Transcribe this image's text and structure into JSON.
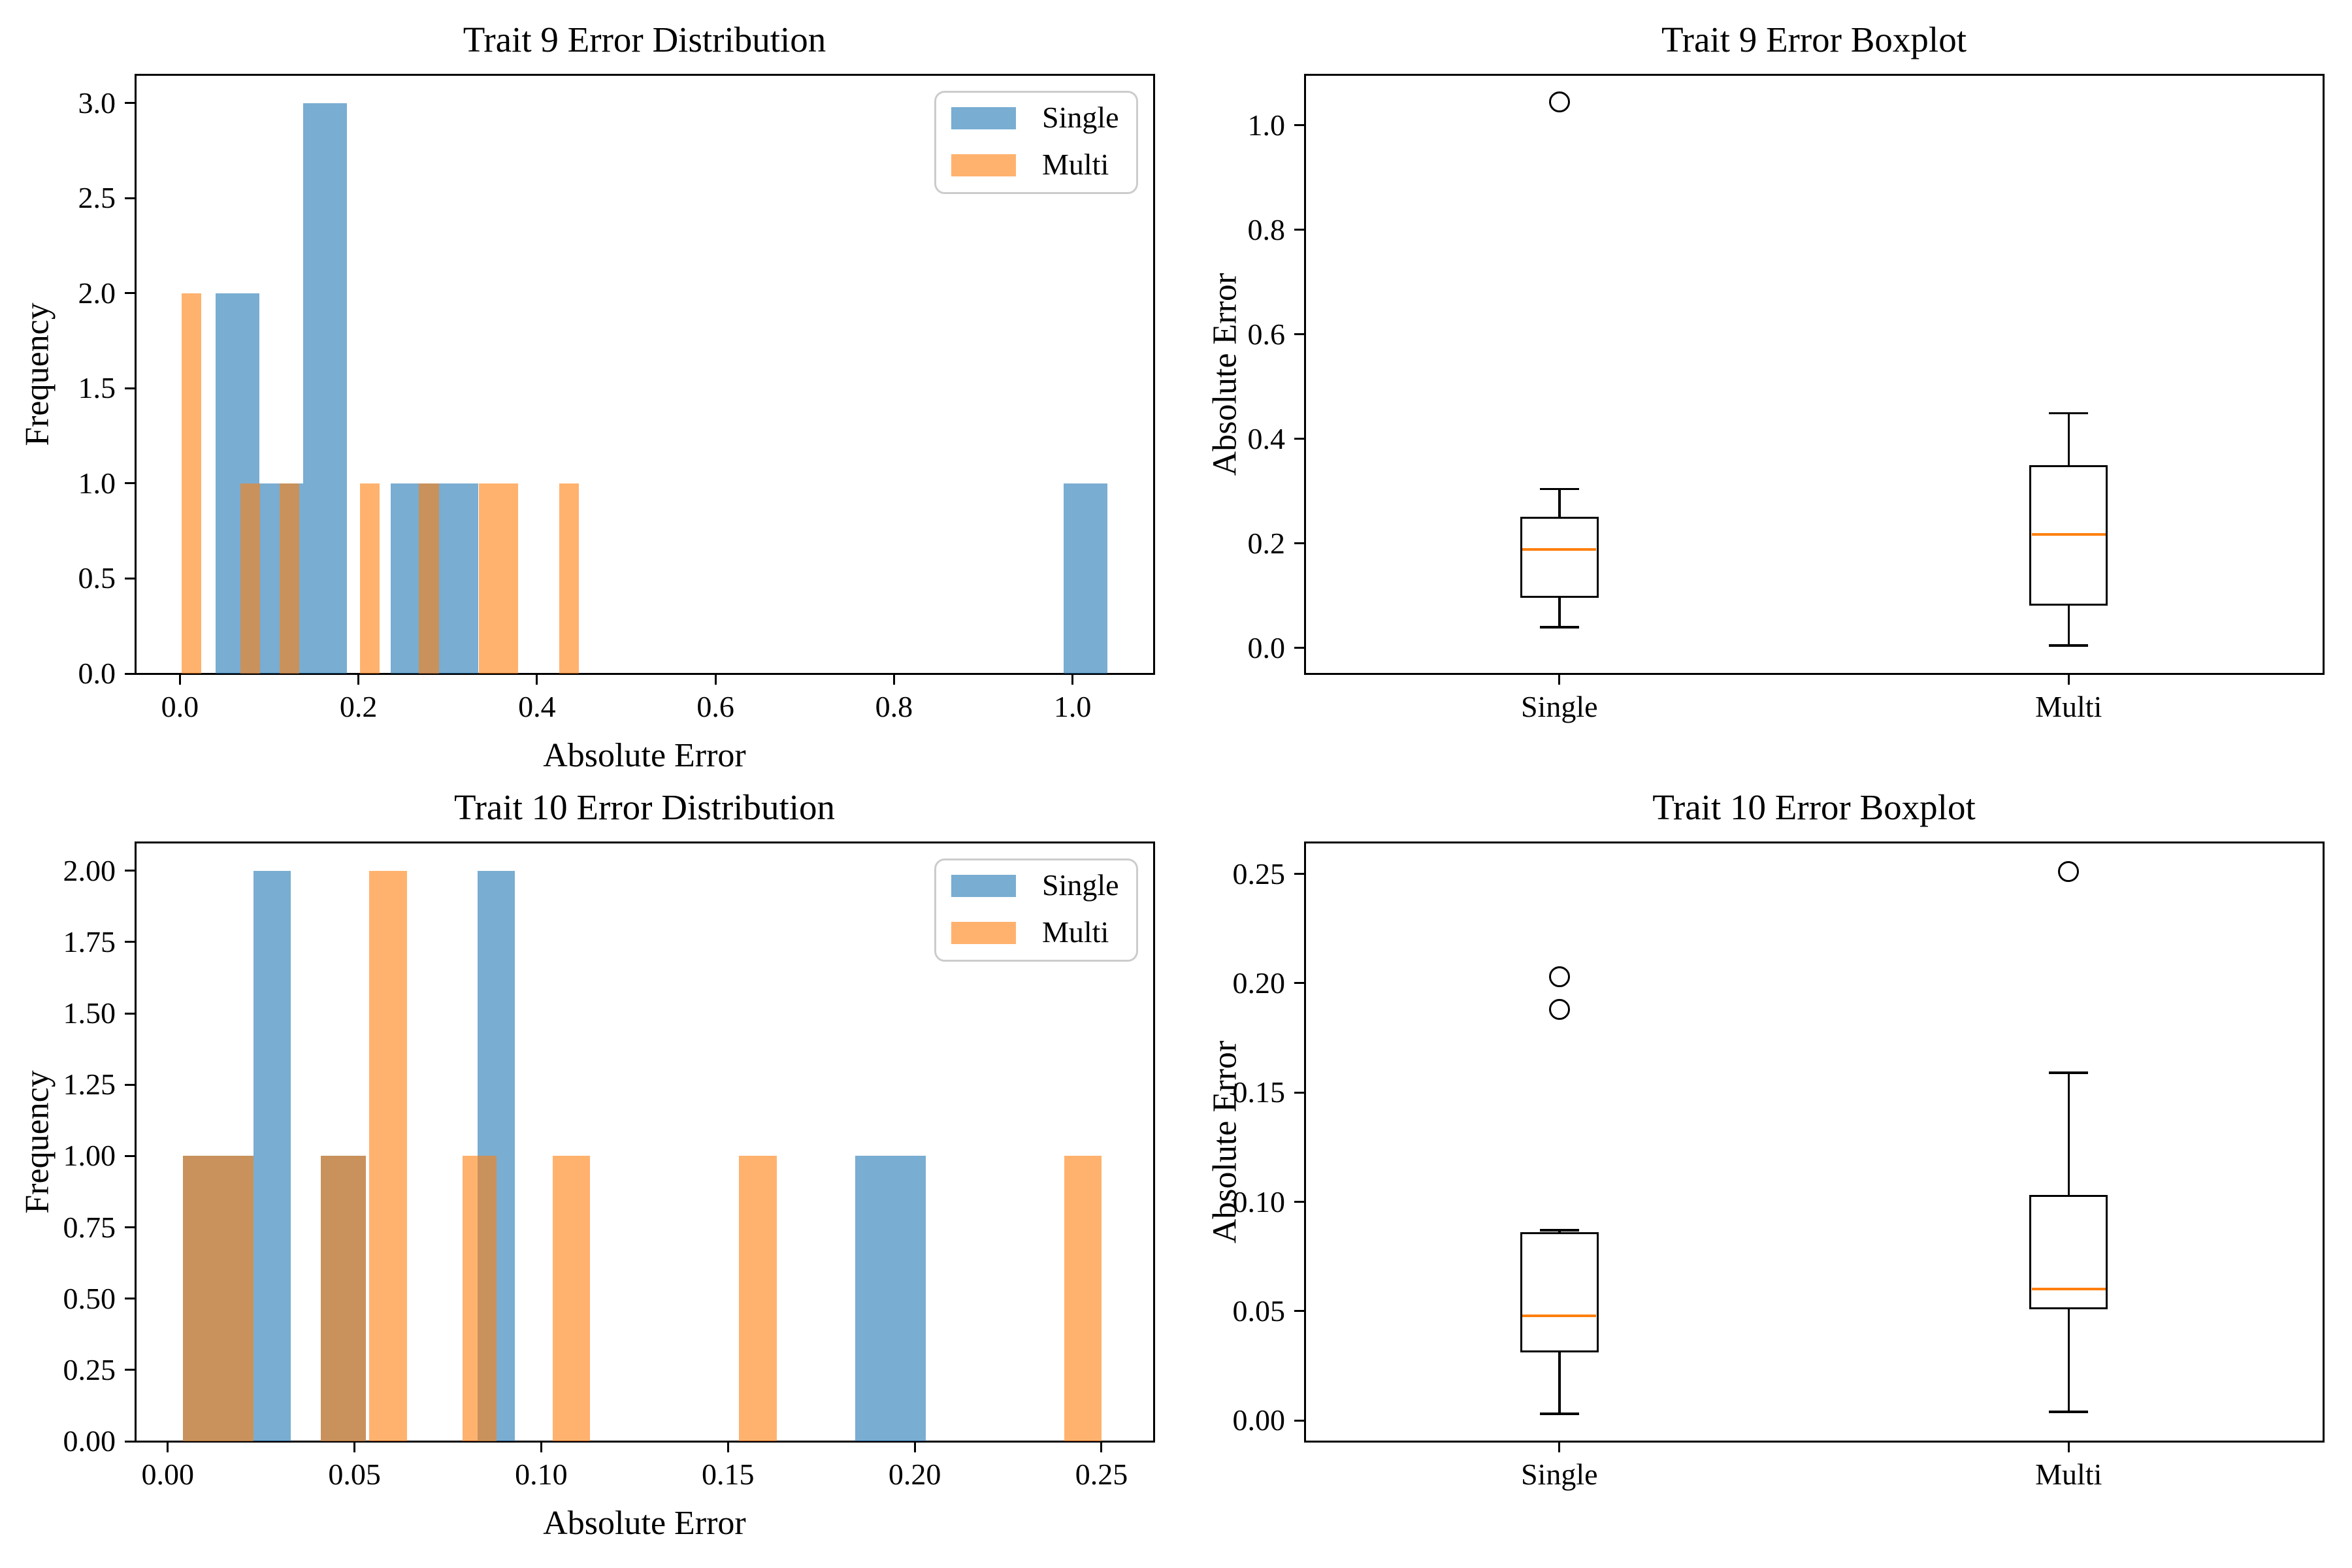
{
  "figure": {
    "background": "#ffffff",
    "rows": 2,
    "cols": 2
  },
  "colors": {
    "single_fill": "rgba(31,119,180,0.6)",
    "multi_fill": "rgba(255,127,14,0.6)",
    "median": "#ff7f0e",
    "box_line": "#000000",
    "legend_border": "#cccccc",
    "text": "#000000"
  },
  "legend_labels": {
    "single": "Single",
    "multi": "Multi"
  },
  "chart_data": [
    {
      "id": "trait9-hist",
      "type": "bar",
      "title": "Trait 9 Error Distribution",
      "xlabel": "Absolute Error",
      "ylabel": "Frequency",
      "xlim": [
        -0.05,
        1.091
      ],
      "ylim": [
        0,
        3.15
      ],
      "xticks": [
        0.0,
        0.2,
        0.4,
        0.6,
        0.8,
        1.0
      ],
      "xtick_labels": [
        "0.0",
        "0.2",
        "0.4",
        "0.6",
        "0.8",
        "1.0"
      ],
      "yticks": [
        0.0,
        0.5,
        1.0,
        1.5,
        2.0,
        2.5,
        3.0
      ],
      "ytick_labels": [
        "0.0",
        "0.5",
        "1.0",
        "1.5",
        "2.0",
        "2.5",
        "3.0"
      ],
      "grid": false,
      "legend": {
        "position": "top-right",
        "entries": [
          {
            "label": "Single",
            "color_key": "single_fill"
          },
          {
            "label": "Multi",
            "color_key": "multi_fill"
          }
        ]
      },
      "series": [
        {
          "name": "Single",
          "color_key": "single_fill",
          "bars": [
            {
              "x0": 0.04,
              "x1": 0.089,
              "h": 2
            },
            {
              "x0": 0.089,
              "x1": 0.138,
              "h": 1
            },
            {
              "x0": 0.138,
              "x1": 0.187,
              "h": 3
            },
            {
              "x0": 0.236,
              "x1": 0.285,
              "h": 1
            },
            {
              "x0": 0.285,
              "x1": 0.334,
              "h": 1
            },
            {
              "x0": 0.99,
              "x1": 1.039,
              "h": 1
            }
          ]
        },
        {
          "name": "Multi",
          "color_key": "multi_fill",
          "bars": [
            {
              "x0": 0.002,
              "x1": 0.024,
              "h": 2
            },
            {
              "x0": 0.068,
              "x1": 0.09,
              "h": 1
            },
            {
              "x0": 0.112,
              "x1": 0.134,
              "h": 1
            },
            {
              "x0": 0.202,
              "x1": 0.224,
              "h": 1
            },
            {
              "x0": 0.268,
              "x1": 0.29,
              "h": 1
            },
            {
              "x0": 0.335,
              "x1": 0.379,
              "h": 1
            },
            {
              "x0": 0.425,
              "x1": 0.447,
              "h": 1
            }
          ]
        }
      ]
    },
    {
      "id": "trait9-box",
      "type": "boxplot",
      "title": "Trait 9 Error Boxplot",
      "ylabel": "Absolute Error",
      "ylim": [
        -0.049,
        1.097
      ],
      "yticks": [
        0.0,
        0.2,
        0.4,
        0.6,
        0.8,
        1.0
      ],
      "ytick_labels": [
        "0.0",
        "0.2",
        "0.4",
        "0.6",
        "0.8",
        "1.0"
      ],
      "grid": false,
      "categories": [
        "Single",
        "Multi"
      ],
      "boxes": [
        {
          "label": "Single",
          "whislo": 0.04,
          "q1": 0.096,
          "med": 0.189,
          "q3": 0.251,
          "whishi": 0.304,
          "fliers": [
            1.045
          ]
        },
        {
          "label": "Multi",
          "whislo": 0.005,
          "q1": 0.081,
          "med": 0.217,
          "q3": 0.35,
          "whishi": 0.449,
          "fliers": []
        }
      ]
    },
    {
      "id": "trait10-hist",
      "type": "bar",
      "title": "Trait 10 Error Distribution",
      "xlabel": "Absolute Error",
      "ylabel": "Frequency",
      "xlim": [
        -0.0087,
        0.264
      ],
      "ylim": [
        0,
        2.1
      ],
      "xticks": [
        0.0,
        0.05,
        0.1,
        0.15,
        0.2,
        0.25
      ],
      "xtick_labels": [
        "0.00",
        "0.05",
        "0.10",
        "0.15",
        "0.20",
        "0.25"
      ],
      "yticks": [
        0.0,
        0.25,
        0.5,
        0.75,
        1.0,
        1.25,
        1.5,
        1.75,
        2.0
      ],
      "ytick_labels": [
        "0.00",
        "0.25",
        "0.50",
        "0.75",
        "1.00",
        "1.25",
        "1.50",
        "1.75",
        "2.00"
      ],
      "grid": false,
      "legend": {
        "position": "top-right",
        "entries": [
          {
            "label": "Single",
            "color_key": "single_fill"
          },
          {
            "label": "Multi",
            "color_key": "multi_fill"
          }
        ]
      },
      "series": [
        {
          "name": "Single",
          "color_key": "single_fill",
          "bars": [
            {
              "x0": 0.004,
              "x1": 0.023,
              "h": 1
            },
            {
              "x0": 0.023,
              "x1": 0.033,
              "h": 2
            },
            {
              "x0": 0.041,
              "x1": 0.053,
              "h": 1
            },
            {
              "x0": 0.083,
              "x1": 0.093,
              "h": 2
            },
            {
              "x0": 0.184,
              "x1": 0.203,
              "h": 1
            }
          ]
        },
        {
          "name": "Multi",
          "color_key": "multi_fill",
          "bars": [
            {
              "x0": 0.004,
              "x1": 0.023,
              "h": 1
            },
            {
              "x0": 0.041,
              "x1": 0.053,
              "h": 1
            },
            {
              "x0": 0.054,
              "x1": 0.064,
              "h": 2
            },
            {
              "x0": 0.079,
              "x1": 0.088,
              "h": 1
            },
            {
              "x0": 0.103,
              "x1": 0.113,
              "h": 1
            },
            {
              "x0": 0.153,
              "x1": 0.163,
              "h": 1
            },
            {
              "x0": 0.24,
              "x1": 0.25,
              "h": 1
            }
          ]
        }
      ]
    },
    {
      "id": "trait10-box",
      "type": "boxplot",
      "title": "Trait 10 Error Boxplot",
      "ylabel": "Absolute Error",
      "ylim": [
        -0.0095,
        0.2645
      ],
      "yticks": [
        0.0,
        0.05,
        0.1,
        0.15,
        0.2,
        0.25
      ],
      "ytick_labels": [
        "0.00",
        "0.05",
        "0.10",
        "0.15",
        "0.20",
        "0.25"
      ],
      "grid": false,
      "categories": [
        "Single",
        "Multi"
      ],
      "boxes": [
        {
          "label": "Single",
          "whislo": 0.003,
          "q1": 0.031,
          "med": 0.048,
          "q3": 0.086,
          "whishi": 0.087,
          "fliers": [
            0.188,
            0.203
          ]
        },
        {
          "label": "Multi",
          "whislo": 0.004,
          "q1": 0.051,
          "med": 0.06,
          "q3": 0.103,
          "whishi": 0.159,
          "fliers": [
            0.251
          ]
        }
      ]
    }
  ]
}
